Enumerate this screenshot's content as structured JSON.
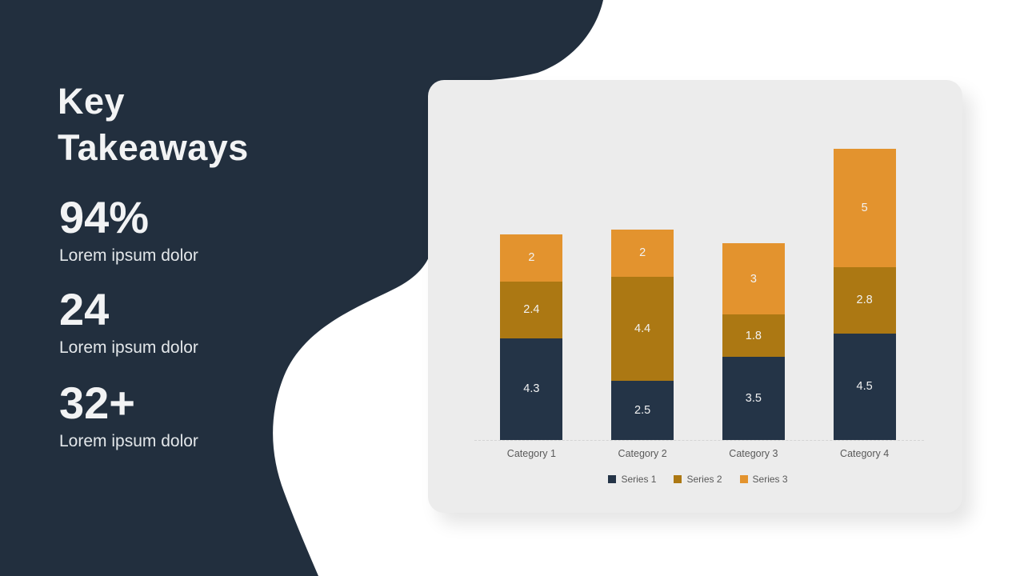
{
  "slide": {
    "title_line1": "Key",
    "title_line2": "Takeaways",
    "stats": [
      {
        "value": "94%",
        "label": "Lorem ipsum dolor"
      },
      {
        "value": "24",
        "label": "Lorem ipsum dolor"
      },
      {
        "value": "32+",
        "label": "Lorem ipsum dolor"
      }
    ]
  },
  "colors": {
    "left_panel_background": "#222F3E",
    "card_background": "#ECECEC",
    "page_background": "#FFFFFF",
    "light_text": "#F2F3F4",
    "muted_text": "#595959",
    "axis_line": "#D4D4D4",
    "series1": "#243447",
    "series2": "#AC7813",
    "series3": "#E3932E"
  },
  "chart_data": {
    "type": "bar",
    "stacked": true,
    "title": "",
    "xlabel": "",
    "ylabel": "",
    "categories": [
      "Category 1",
      "Category 2",
      "Category 3",
      "Category 4"
    ],
    "series": [
      {
        "name": "Series 1",
        "color": "#243447",
        "values": [
          4.3,
          2.5,
          3.5,
          4.5
        ]
      },
      {
        "name": "Series 2",
        "color": "#AC7813",
        "values": [
          2.4,
          4.4,
          1.8,
          2.8
        ]
      },
      {
        "name": "Series 3",
        "color": "#E3932E",
        "values": [
          2,
          2,
          3,
          5
        ]
      }
    ],
    "totals": [
      8.7,
      8.9,
      8.3,
      12.3
    ],
    "value_labels": true,
    "legend_position": "bottom",
    "grid": false,
    "ylim": [
      0,
      15.2
    ]
  }
}
